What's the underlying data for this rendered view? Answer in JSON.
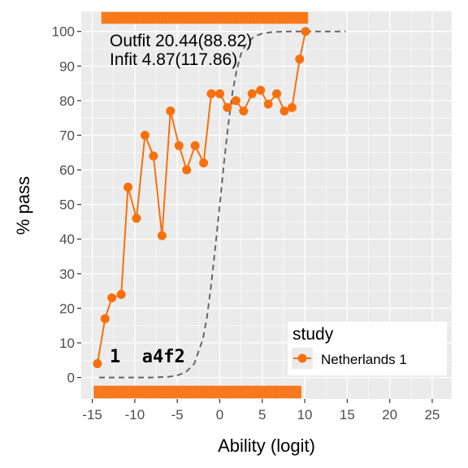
{
  "chart_data": {
    "type": "line",
    "xlabel": "Ability (logit)",
    "ylabel": "% pass",
    "xlim": [
      -16.3,
      27.3
    ],
    "ylim": [
      -6.2,
      105.8
    ],
    "x_ticks": [
      -15,
      -10,
      -5,
      0,
      5,
      10,
      15,
      20,
      25
    ],
    "y_ticks": [
      0,
      10,
      20,
      30,
      40,
      50,
      60,
      70,
      80,
      90,
      100
    ],
    "grid": true,
    "legend": {
      "title": "study",
      "position": "bottom-right"
    },
    "fit_text": {
      "outfit": "Outfit 20.44(88.82)",
      "infit": "Infit  4.87(117.86)"
    },
    "item_label": "1  a4f2",
    "series": [
      {
        "name": "Netherlands 1",
        "color": "#f8700d",
        "x": [
          -14.4,
          -13.5,
          -12.7,
          -11.6,
          -10.8,
          -9.8,
          -8.8,
          -7.8,
          -6.8,
          -5.8,
          -4.8,
          -3.9,
          -2.9,
          -1.9,
          -1.0,
          0.0,
          0.9,
          1.9,
          2.8,
          3.8,
          4.8,
          5.7,
          6.7,
          7.6,
          8.5,
          9.4,
          10.1
        ],
        "y": [
          4,
          17,
          23,
          24,
          55,
          46,
          70,
          64,
          41,
          77,
          67,
          60,
          67,
          62,
          82,
          82,
          78,
          80,
          77,
          82,
          83,
          79,
          82,
          77,
          78,
          92,
          100
        ]
      }
    ],
    "expected_curve": {
      "color": "#666666",
      "style": "dashed",
      "x": [
        -14.2,
        -12,
        -10,
        -8,
        -6,
        -5,
        -4,
        -3,
        -2,
        -1.5,
        -1,
        -0.5,
        0,
        0.5,
        1,
        1.5,
        2,
        2.5,
        3,
        4,
        5,
        6,
        7,
        8,
        10,
        12,
        14.8
      ],
      "y": [
        0,
        0,
        0,
        0,
        0.2,
        0.6,
        1.5,
        4,
        11,
        17.5,
        27,
        38,
        50,
        62,
        73,
        82.5,
        89,
        93.5,
        96,
        98.5,
        99.4,
        99.8,
        99.9,
        100,
        100,
        100,
        100
      ]
    },
    "rug": {
      "color": "#f8700d",
      "top_x_range": [
        -13.9,
        10.4
      ],
      "bottom_x_range": [
        -14.8,
        9.6
      ]
    }
  }
}
